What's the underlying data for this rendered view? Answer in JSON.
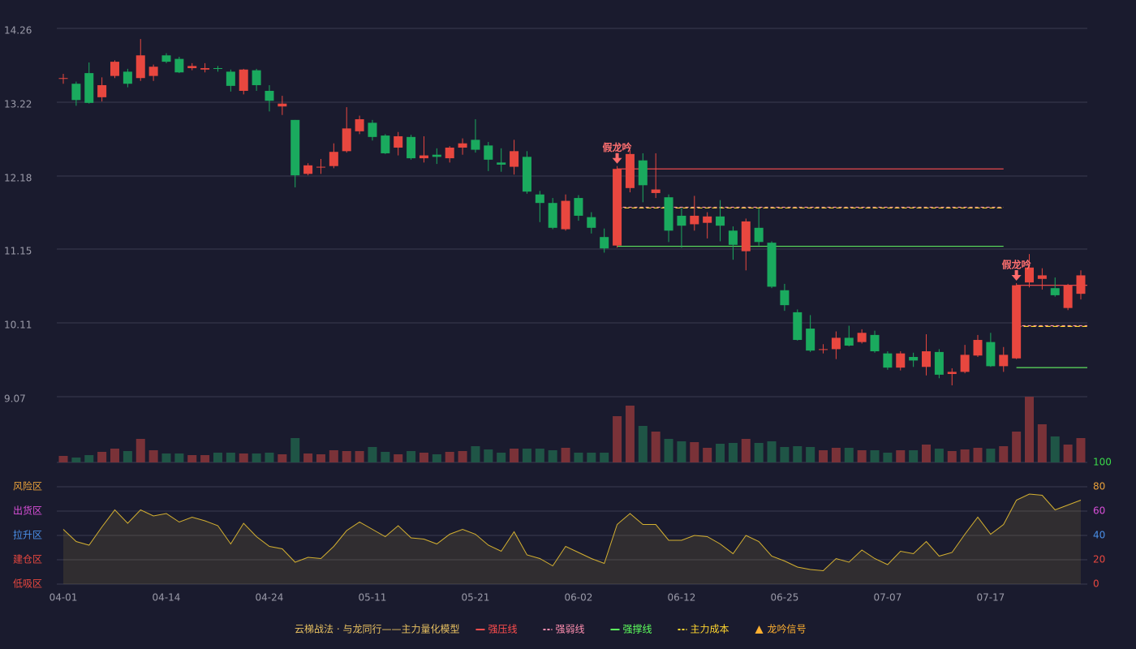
{
  "chart_data": {
    "type": "candlestick",
    "categories": [
      "04-01",
      null,
      null,
      null,
      null,
      null,
      null,
      null,
      "04-14",
      null,
      null,
      null,
      null,
      null,
      null,
      null,
      "04-24",
      null,
      null,
      null,
      null,
      null,
      null,
      null,
      "05-11",
      null,
      null,
      null,
      null,
      null,
      null,
      null,
      "05-21",
      null,
      null,
      null,
      null,
      null,
      null,
      null,
      "06-02",
      null,
      null,
      null,
      null,
      null,
      null,
      null,
      "06-12",
      null,
      null,
      null,
      null,
      null,
      null,
      null,
      "06-25",
      null,
      null,
      null,
      null,
      null,
      null,
      null,
      "07-07",
      null,
      null,
      null,
      null,
      null,
      null,
      null,
      "07-17",
      null,
      null,
      null,
      null,
      null,
      null,
      null
    ],
    "open": [
      13.55,
      13.48,
      13.63,
      13.29,
      13.59,
      13.65,
      13.56,
      13.59,
      13.88,
      13.83,
      13.7,
      13.68,
      13.7,
      13.65,
      13.38,
      13.67,
      13.38,
      13.16,
      12.97,
      12.21,
      12.3,
      12.32,
      12.53,
      12.81,
      12.93,
      12.75,
      12.58,
      12.73,
      12.43,
      12.48,
      12.43,
      12.58,
      12.69,
      12.61,
      12.37,
      12.31,
      12.45,
      11.92,
      11.8,
      11.43,
      11.87,
      11.6,
      11.32,
      11.2,
      12.01,
      12.4,
      11.94,
      11.88,
      11.62,
      11.5,
      11.52,
      11.61,
      11.41,
      11.12,
      11.45,
      11.24,
      10.57,
      10.26,
      10.03,
      9.73,
      9.74,
      9.9,
      9.84,
      9.94,
      9.68,
      9.48,
      9.63,
      9.49,
      9.7,
      9.39,
      9.42,
      9.65,
      9.84,
      9.5,
      9.61,
      10.68,
      10.73,
      10.6,
      10.32,
      10.52
    ],
    "high": [
      13.62,
      13.51,
      13.78,
      13.57,
      13.81,
      13.69,
      14.11,
      13.75,
      13.91,
      13.86,
      13.77,
      13.77,
      13.73,
      13.68,
      13.69,
      13.69,
      13.46,
      13.31,
      12.97,
      12.36,
      12.42,
      12.64,
      13.15,
      13.03,
      12.97,
      12.77,
      12.8,
      12.76,
      12.74,
      12.57,
      12.6,
      12.71,
      12.98,
      12.66,
      12.57,
      12.69,
      12.53,
      11.97,
      11.87,
      11.92,
      11.91,
      11.67,
      11.44,
      12.32,
      12.55,
      12.5,
      12.5,
      11.92,
      11.73,
      11.9,
      11.67,
      11.84,
      11.47,
      11.58,
      11.72,
      11.26,
      10.66,
      10.3,
      10.22,
      9.81,
      9.99,
      10.07,
      10.02,
      10.0,
      9.71,
      9.71,
      9.69,
      9.95,
      9.74,
      9.47,
      9.8,
      9.94,
      9.97,
      9.77,
      10.67,
      11.08,
      10.88,
      10.75,
      10.66,
      10.85
    ],
    "low": [
      13.48,
      13.17,
      13.2,
      13.23,
      13.56,
      13.43,
      13.52,
      13.52,
      13.77,
      13.63,
      13.67,
      13.64,
      13.65,
      13.37,
      13.33,
      13.38,
      13.09,
      13.04,
      12.02,
      12.19,
      12.21,
      12.29,
      12.51,
      12.77,
      12.68,
      12.49,
      12.47,
      12.41,
      12.37,
      12.35,
      12.37,
      12.48,
      12.51,
      12.25,
      12.24,
      12.2,
      11.93,
      11.53,
      11.43,
      11.41,
      11.55,
      11.37,
      11.1,
      11.17,
      11.95,
      11.81,
      11.87,
      11.25,
      11.17,
      11.41,
      11.3,
      11.26,
      11.0,
      10.85,
      11.2,
      10.6,
      10.28,
      9.86,
      9.7,
      9.68,
      9.6,
      9.78,
      9.82,
      9.69,
      9.45,
      9.44,
      9.49,
      9.37,
      9.33,
      9.23,
      9.4,
      9.63,
      9.49,
      9.42,
      9.6,
      10.61,
      10.58,
      10.48,
      10.29,
      10.44
    ],
    "close": [
      13.56,
      13.25,
      13.21,
      13.46,
      13.79,
      13.48,
      13.88,
      13.72,
      13.79,
      13.64,
      13.73,
      13.7,
      13.69,
      13.45,
      13.68,
      13.46,
      13.24,
      13.2,
      12.19,
      12.33,
      12.31,
      12.52,
      12.85,
      12.98,
      12.73,
      12.5,
      12.74,
      12.43,
      12.47,
      12.45,
      12.58,
      12.64,
      12.55,
      12.41,
      12.34,
      12.53,
      11.96,
      11.8,
      11.45,
      11.83,
      11.62,
      11.45,
      11.16,
      12.28,
      12.49,
      12.05,
      11.99,
      11.41,
      11.48,
      11.62,
      11.61,
      11.48,
      11.21,
      11.54,
      11.25,
      10.62,
      10.36,
      9.87,
      9.72,
      9.74,
      9.9,
      9.79,
      9.97,
      9.71,
      9.48,
      9.68,
      9.58,
      9.71,
      9.38,
      9.42,
      9.66,
      9.87,
      9.5,
      9.66,
      10.64,
      10.89,
      10.78,
      10.5,
      10.64,
      10.78
    ],
    "up_color": "#e8473f",
    "down_color": "#1aaa5e",
    "ylim": [
      9.07,
      14.26
    ],
    "yticks": [
      9.07,
      10.11,
      11.15,
      12.18,
      13.22,
      14.26
    ],
    "grid": true,
    "volume": {
      "ylim": [
        0,
        81
      ],
      "up_color": "#7a3238",
      "down_color": "#1f5546",
      "values": [
        8,
        6,
        9,
        13,
        17,
        14,
        29,
        15,
        11,
        11,
        9,
        9,
        12,
        12,
        11,
        11,
        12,
        10,
        30,
        11,
        10,
        15,
        14,
        14,
        19,
        13,
        10,
        14,
        12,
        10,
        13,
        14,
        20,
        16,
        12,
        17,
        17,
        17,
        15,
        18,
        12,
        12,
        12,
        57,
        70,
        45,
        38,
        29,
        26,
        25,
        18,
        23,
        24,
        29,
        24,
        26,
        19,
        20,
        19,
        15,
        18,
        18,
        15,
        15,
        12,
        15,
        15,
        22,
        17,
        14,
        16,
        18,
        17,
        20,
        38,
        81,
        47,
        32,
        22,
        30
      ]
    },
    "indicator": {
      "ylim": [
        0,
        100
      ],
      "color": "#d4b030",
      "yticks": [
        {
          "value": 0,
          "color": "#e8473f"
        },
        {
          "value": 20,
          "color": "#e8473f"
        },
        {
          "value": 40,
          "color": "#4a8fe8"
        },
        {
          "value": 60,
          "color": "#d94fd9"
        },
        {
          "value": 80,
          "color": "#e8a03a"
        },
        {
          "value": 100,
          "color": "#3ad94a"
        }
      ],
      "bands": [
        {
          "value": 80,
          "label": "风险区",
          "color": "#e8a03a"
        },
        {
          "value": 60,
          "label": "出货区",
          "color": "#d94fd9"
        },
        {
          "value": 40,
          "label": "拉升区",
          "color": "#4a8fe8"
        },
        {
          "value": 20,
          "label": "建仓区",
          "color": "#e8473f"
        },
        {
          "value": 0,
          "label": "低吸区",
          "color": "#e8473f"
        }
      ],
      "values": [
        45,
        35,
        32,
        47,
        61,
        50,
        61,
        56,
        58,
        51,
        55,
        52,
        48,
        33,
        50,
        39,
        31,
        29,
        18,
        22,
        21,
        31,
        44,
        51,
        45,
        39,
        48,
        38,
        37,
        33,
        41,
        45,
        41,
        32,
        27,
        43,
        24,
        21,
        15,
        31,
        26,
        21,
        17,
        49,
        58,
        49,
        49,
        36,
        36,
        40,
        39,
        33,
        25,
        40,
        35,
        23,
        19,
        14,
        12,
        11,
        21,
        18,
        28,
        21,
        16,
        27,
        25,
        35,
        23,
        26,
        41,
        55,
        41,
        49,
        69,
        74,
        73,
        61,
        65,
        69
      ]
    },
    "zones": [
      {
        "start": 43,
        "end": 73,
        "resistance": 12.28,
        "weak": 11.74,
        "cost": 11.73,
        "support": 11.19
      },
      {
        "start": 74,
        "end": 79,
        "resistance": 10.64,
        "weak": 10.07,
        "cost": 10.06,
        "support": 9.48
      }
    ],
    "signals": [
      {
        "index": 43,
        "label": "假龙吟"
      },
      {
        "index": 74,
        "label": "假龙吟"
      }
    ],
    "legend": {
      "title": "云梯战法 · 与龙同行——主力量化模型",
      "title_color": "#e8c060",
      "items": [
        {
          "name": "强压线",
          "color": "#ff4d4d",
          "style": "solid"
        },
        {
          "name": "强弱线",
          "color": "#ff8fb0",
          "style": "dash"
        },
        {
          "name": "强撑线",
          "color": "#5dff5d",
          "style": "solid"
        },
        {
          "name": "主力成本",
          "color": "#ffd52e",
          "style": "dash"
        },
        {
          "name": "龙吟信号",
          "color": "#ffb030",
          "style": "triangle"
        }
      ]
    }
  }
}
